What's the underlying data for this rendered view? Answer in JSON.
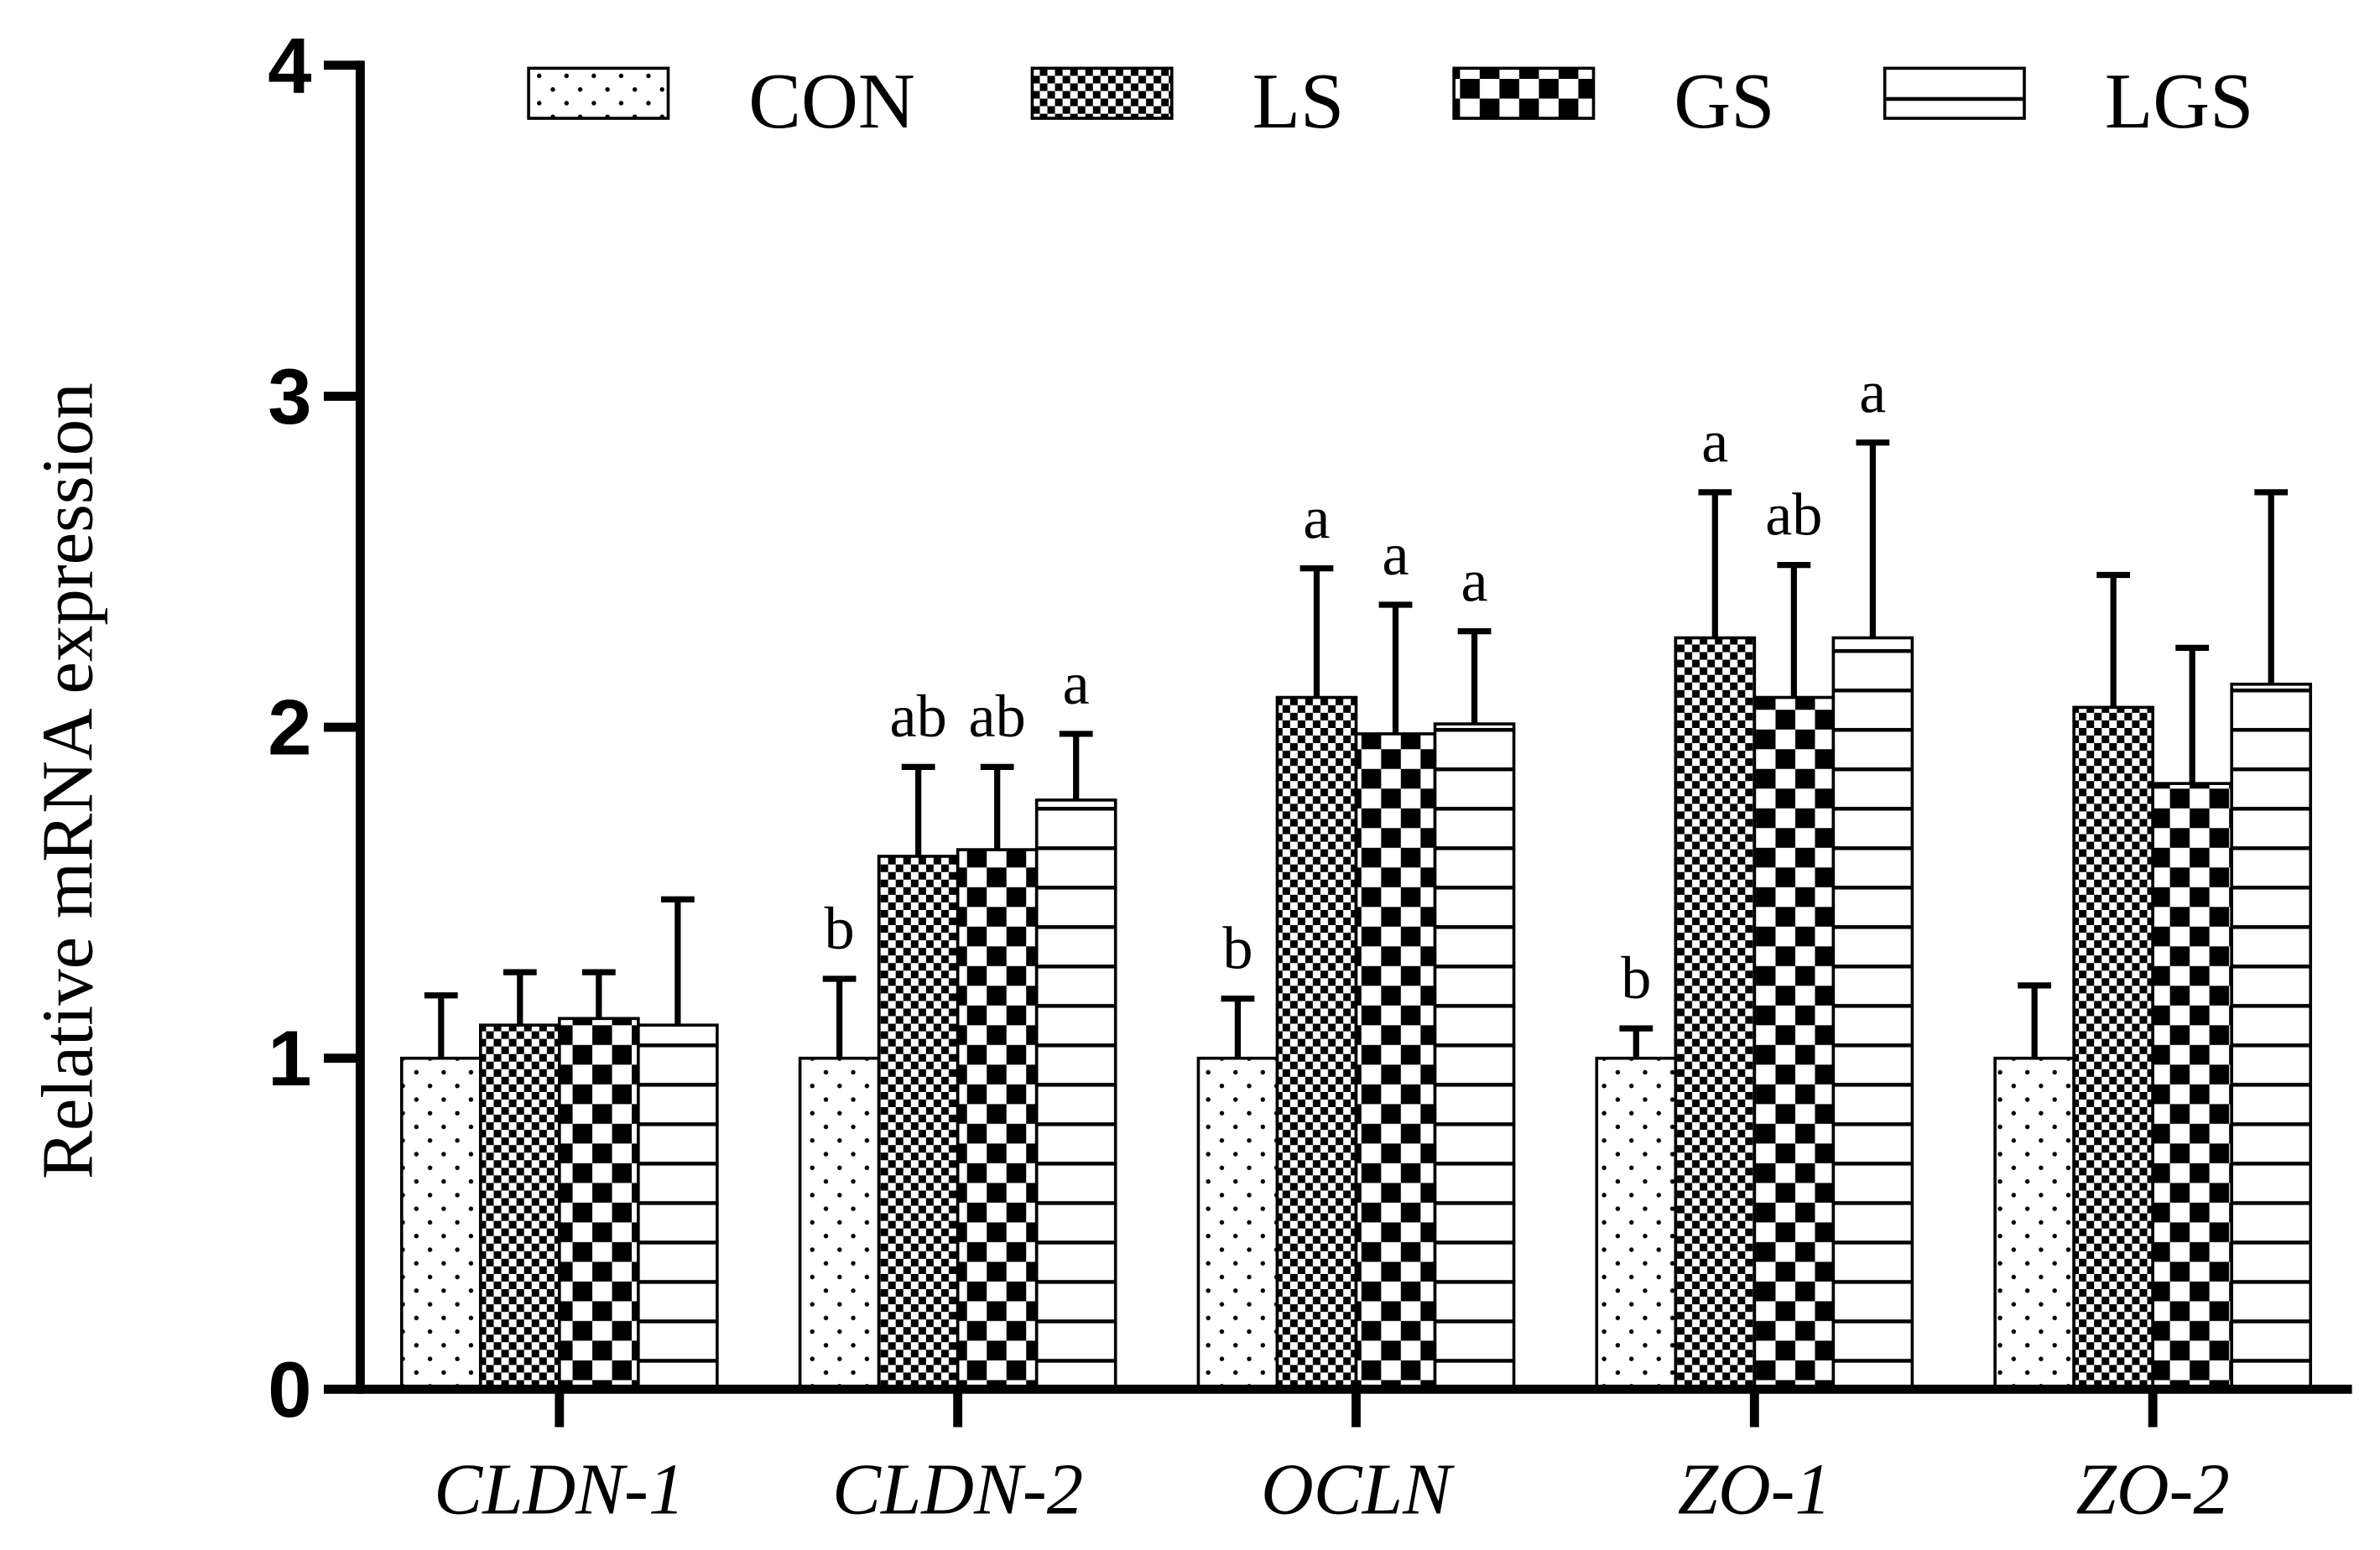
{
  "chart_data": {
    "type": "bar",
    "y_label": "Relative mRNA expression",
    "categories": [
      "CLDN-1",
      "CLDN-2",
      "OCLN",
      "ZO-1",
      "ZO-2"
    ],
    "ylim": [
      0,
      4
    ],
    "yticks": [
      0,
      1,
      2,
      3,
      4
    ],
    "series": [
      {
        "name": "CON",
        "color": "#000000",
        "pattern": "dots",
        "values": [
          1.0,
          1.0,
          1.0,
          1.0,
          1.0
        ],
        "errors": [
          0.19,
          0.24,
          0.18,
          0.09,
          0.22
        ],
        "annotations": [
          null,
          "b",
          "b",
          "b",
          null
        ]
      },
      {
        "name": "LS",
        "color": "#000000",
        "pattern": "fine-checker",
        "values": [
          1.1,
          1.61,
          2.09,
          2.27,
          2.06
        ],
        "errors": [
          0.16,
          0.27,
          0.39,
          0.44,
          0.4
        ],
        "annotations": [
          null,
          "ab",
          "a",
          "a",
          null
        ]
      },
      {
        "name": "GS",
        "color": "#000000",
        "pattern": "checker",
        "values": [
          1.12,
          1.63,
          1.98,
          2.09,
          1.83
        ],
        "errors": [
          0.14,
          0.25,
          0.39,
          0.4,
          0.41
        ],
        "annotations": [
          null,
          "ab",
          "a",
          "ab",
          null
        ]
      },
      {
        "name": "LGS",
        "color": "#000000",
        "pattern": "hlines",
        "values": [
          1.1,
          1.78,
          2.01,
          2.27,
          2.13
        ],
        "errors": [
          0.38,
          0.2,
          0.28,
          0.59,
          0.58
        ],
        "annotations": [
          null,
          "a",
          "a",
          "a",
          null
        ]
      }
    ]
  }
}
